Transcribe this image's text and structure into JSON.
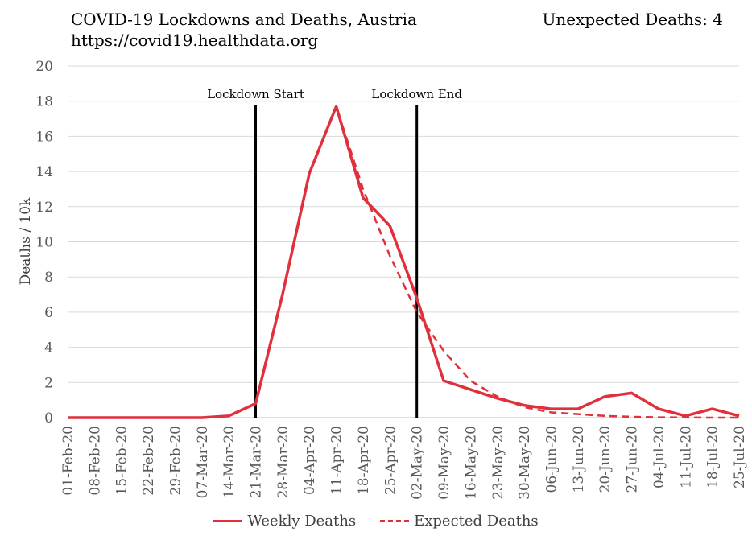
{
  "header": {
    "title": "COVID-19 Lockdowns and Deaths, Austria",
    "subtitle": "https://covid19.healthdata.org",
    "unexpected": "Unexpected Deaths: 4"
  },
  "colors": {
    "series": "#e0303c",
    "grid": "#d9d9d9",
    "axis_text": "#595959"
  },
  "chart_data": {
    "type": "line",
    "ylabel": "Deaths / 10k",
    "ylim": [
      0,
      20
    ],
    "yticks": [
      0,
      2,
      4,
      6,
      8,
      10,
      12,
      14,
      16,
      18,
      20
    ],
    "grid": "horizontal",
    "legend_position": "bottom",
    "categories": [
      "01-Feb-20",
      "08-Feb-20",
      "15-Feb-20",
      "22-Feb-20",
      "29-Feb-20",
      "07-Mar-20",
      "14-Mar-20",
      "21-Mar-20",
      "28-Mar-20",
      "04-Apr-20",
      "11-Apr-20",
      "18-Apr-20",
      "25-Apr-20",
      "02-May-20",
      "09-May-20",
      "16-May-20",
      "23-May-20",
      "30-May-20",
      "06-Jun-20",
      "13-Jun-20",
      "20-Jun-20",
      "27-Jun-20",
      "04-Jul-20",
      "11-Jul-20",
      "18-Jul-20",
      "25-Jul-20"
    ],
    "series": [
      {
        "name": "Weekly Deaths",
        "style": "solid",
        "values": [
          0,
          0,
          0,
          0,
          0,
          0,
          0.1,
          0.8,
          7.0,
          13.9,
          17.7,
          12.5,
          10.9,
          6.8,
          2.1,
          1.6,
          1.1,
          0.7,
          0.5,
          0.5,
          1.2,
          1.4,
          0.5,
          0.1,
          0.5,
          0.1
        ]
      },
      {
        "name": "Expected Deaths",
        "style": "dashed",
        "values": [
          0,
          0,
          0,
          0,
          0,
          0,
          0.1,
          0.8,
          7.0,
          13.9,
          17.7,
          13.0,
          9.2,
          6.0,
          3.8,
          2.1,
          1.2,
          0.6,
          0.3,
          0.2,
          0.1,
          0.05,
          0.02,
          0.01,
          0.0,
          0.0
        ]
      }
    ],
    "annotations": [
      {
        "label": "Lockdown Start",
        "x": "21-Mar-20"
      },
      {
        "label": "Lockdown End",
        "x": "02-May-20"
      }
    ]
  }
}
